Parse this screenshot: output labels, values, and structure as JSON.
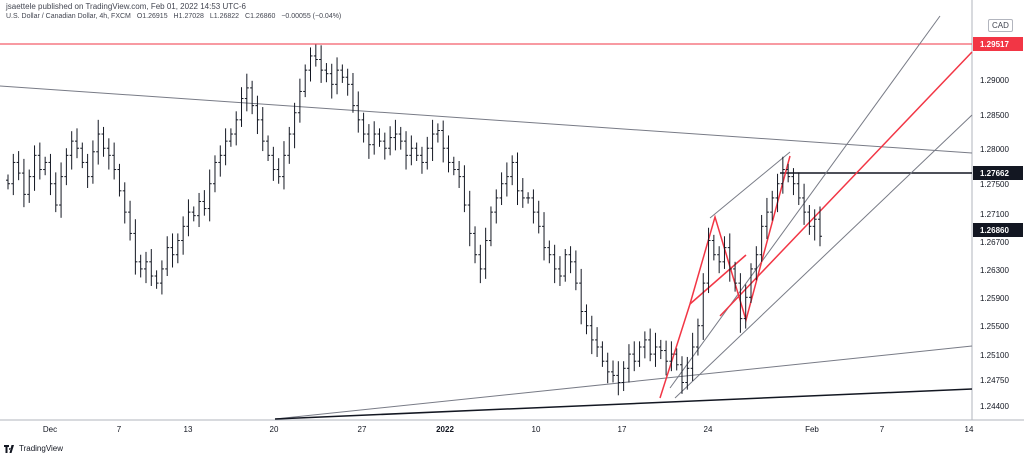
{
  "header": {
    "publisher": "jsaettele published on TradingView.com, Feb 01, 2022 14:53 UTC-6",
    "symbol": "U.S. Dollar / Canadian Dollar, 4h, FXCM",
    "open": "O1.26915",
    "high": "H1.27028",
    "low": "L1.26822",
    "close": "C1.26860",
    "change": "−0.00055 (−0.04%)"
  },
  "currency": "CAD",
  "price_axis": {
    "ticks": [
      "1.29000",
      "1.28500",
      "1.28000",
      "1.27500",
      "1.27100",
      "1.26700",
      "1.26300",
      "1.25900",
      "1.25500",
      "1.25100",
      "1.24750",
      "1.24400"
    ]
  },
  "price_labels": [
    {
      "value": "1.29517",
      "color": "#f23645",
      "text_color": "#ffffff"
    },
    {
      "value": "1.27662",
      "color": "#131722",
      "text_color": "#ffffff"
    },
    {
      "value": "1.26860",
      "color": "#131722",
      "text_color": "#ffffff"
    }
  ],
  "time_axis": {
    "ticks": [
      "Dec",
      "7",
      "13",
      "20",
      "27",
      "2022",
      "10",
      "17",
      "24",
      "Feb",
      "7",
      "14"
    ]
  },
  "footer": {
    "brand": "TradingView"
  },
  "colors": {
    "candle": "#131722",
    "red": "#f23645",
    "grid_line": "#787b86",
    "axis_border": "#b2b5be"
  },
  "chart_data": {
    "type": "candlestick",
    "symbol": "USDCAD",
    "timeframe": "4h",
    "price_range": [
      1.243,
      1.2985
    ],
    "candles_close": [
      1.276,
      1.279,
      1.2775,
      1.2745,
      1.277,
      1.28,
      1.278,
      1.279,
      1.276,
      1.273,
      1.277,
      1.28,
      1.282,
      1.281,
      1.279,
      1.277,
      1.2805,
      1.283,
      1.281,
      1.28,
      1.278,
      1.275,
      1.272,
      1.269,
      1.265,
      1.264,
      1.265,
      1.263,
      1.262,
      1.264,
      1.267,
      1.266,
      1.268,
      1.27,
      1.272,
      1.2715,
      1.2735,
      1.2725,
      1.276,
      1.279,
      1.28,
      1.282,
      1.283,
      1.285,
      1.288,
      1.2895,
      1.287,
      1.285,
      1.282,
      1.28,
      1.278,
      1.277,
      1.28,
      1.283,
      1.286,
      1.289,
      1.292,
      1.294,
      1.2935,
      1.292,
      1.2915,
      1.29,
      1.292,
      1.291,
      1.29,
      1.287,
      1.285,
      1.283,
      1.2815,
      1.283,
      1.282,
      1.281,
      1.2825,
      1.283,
      1.282,
      1.28,
      1.281,
      1.28,
      1.279,
      1.281,
      1.283,
      1.2835,
      1.281,
      1.279,
      1.278,
      1.277,
      1.273,
      1.269,
      1.266,
      1.264,
      1.268,
      1.272,
      1.274,
      1.276,
      1.277,
      1.279,
      1.275,
      1.274,
      1.274,
      1.272,
      1.27,
      1.267,
      1.266,
      1.264,
      1.263,
      1.266,
      1.265,
      1.262,
      1.258,
      1.256,
      1.254,
      1.253,
      1.251,
      1.2495,
      1.249,
      1.248,
      1.25,
      1.252,
      1.251,
      1.253,
      1.254,
      1.252,
      1.253,
      1.2525,
      1.251,
      1.252,
      1.2505,
      1.248,
      1.25,
      1.253,
      1.256,
      1.262,
      1.268,
      1.266,
      1.265,
      1.267,
      1.264,
      1.262,
      1.257,
      1.26,
      1.264,
      1.266,
      1.27,
      1.272,
      1.274,
      1.276,
      1.278,
      1.277,
      1.276,
      1.274,
      1.272,
      1.27,
      1.271,
      1.2686
    ]
  }
}
